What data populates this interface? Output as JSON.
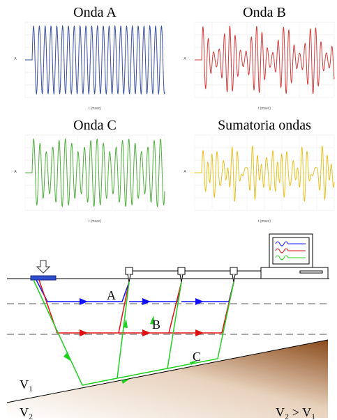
{
  "charts": [
    {
      "title": "Onda A",
      "y_label": "A",
      "x_label": "t (msec)"
    },
    {
      "title": "Onda B",
      "y_label": "A",
      "x_label": "t (msec)"
    },
    {
      "title": "Onda C",
      "y_label": "A",
      "x_label": "t (msec)"
    },
    {
      "title": "Sumatoria ondas",
      "y_label": "A",
      "x_label": "t (msec)"
    }
  ],
  "diagram": {
    "labels": {
      "a": "A",
      "b": "B",
      "c": "C",
      "v1": "V₁",
      "v2": "V₂",
      "relation": "V₂ > V₁"
    }
  }
}
